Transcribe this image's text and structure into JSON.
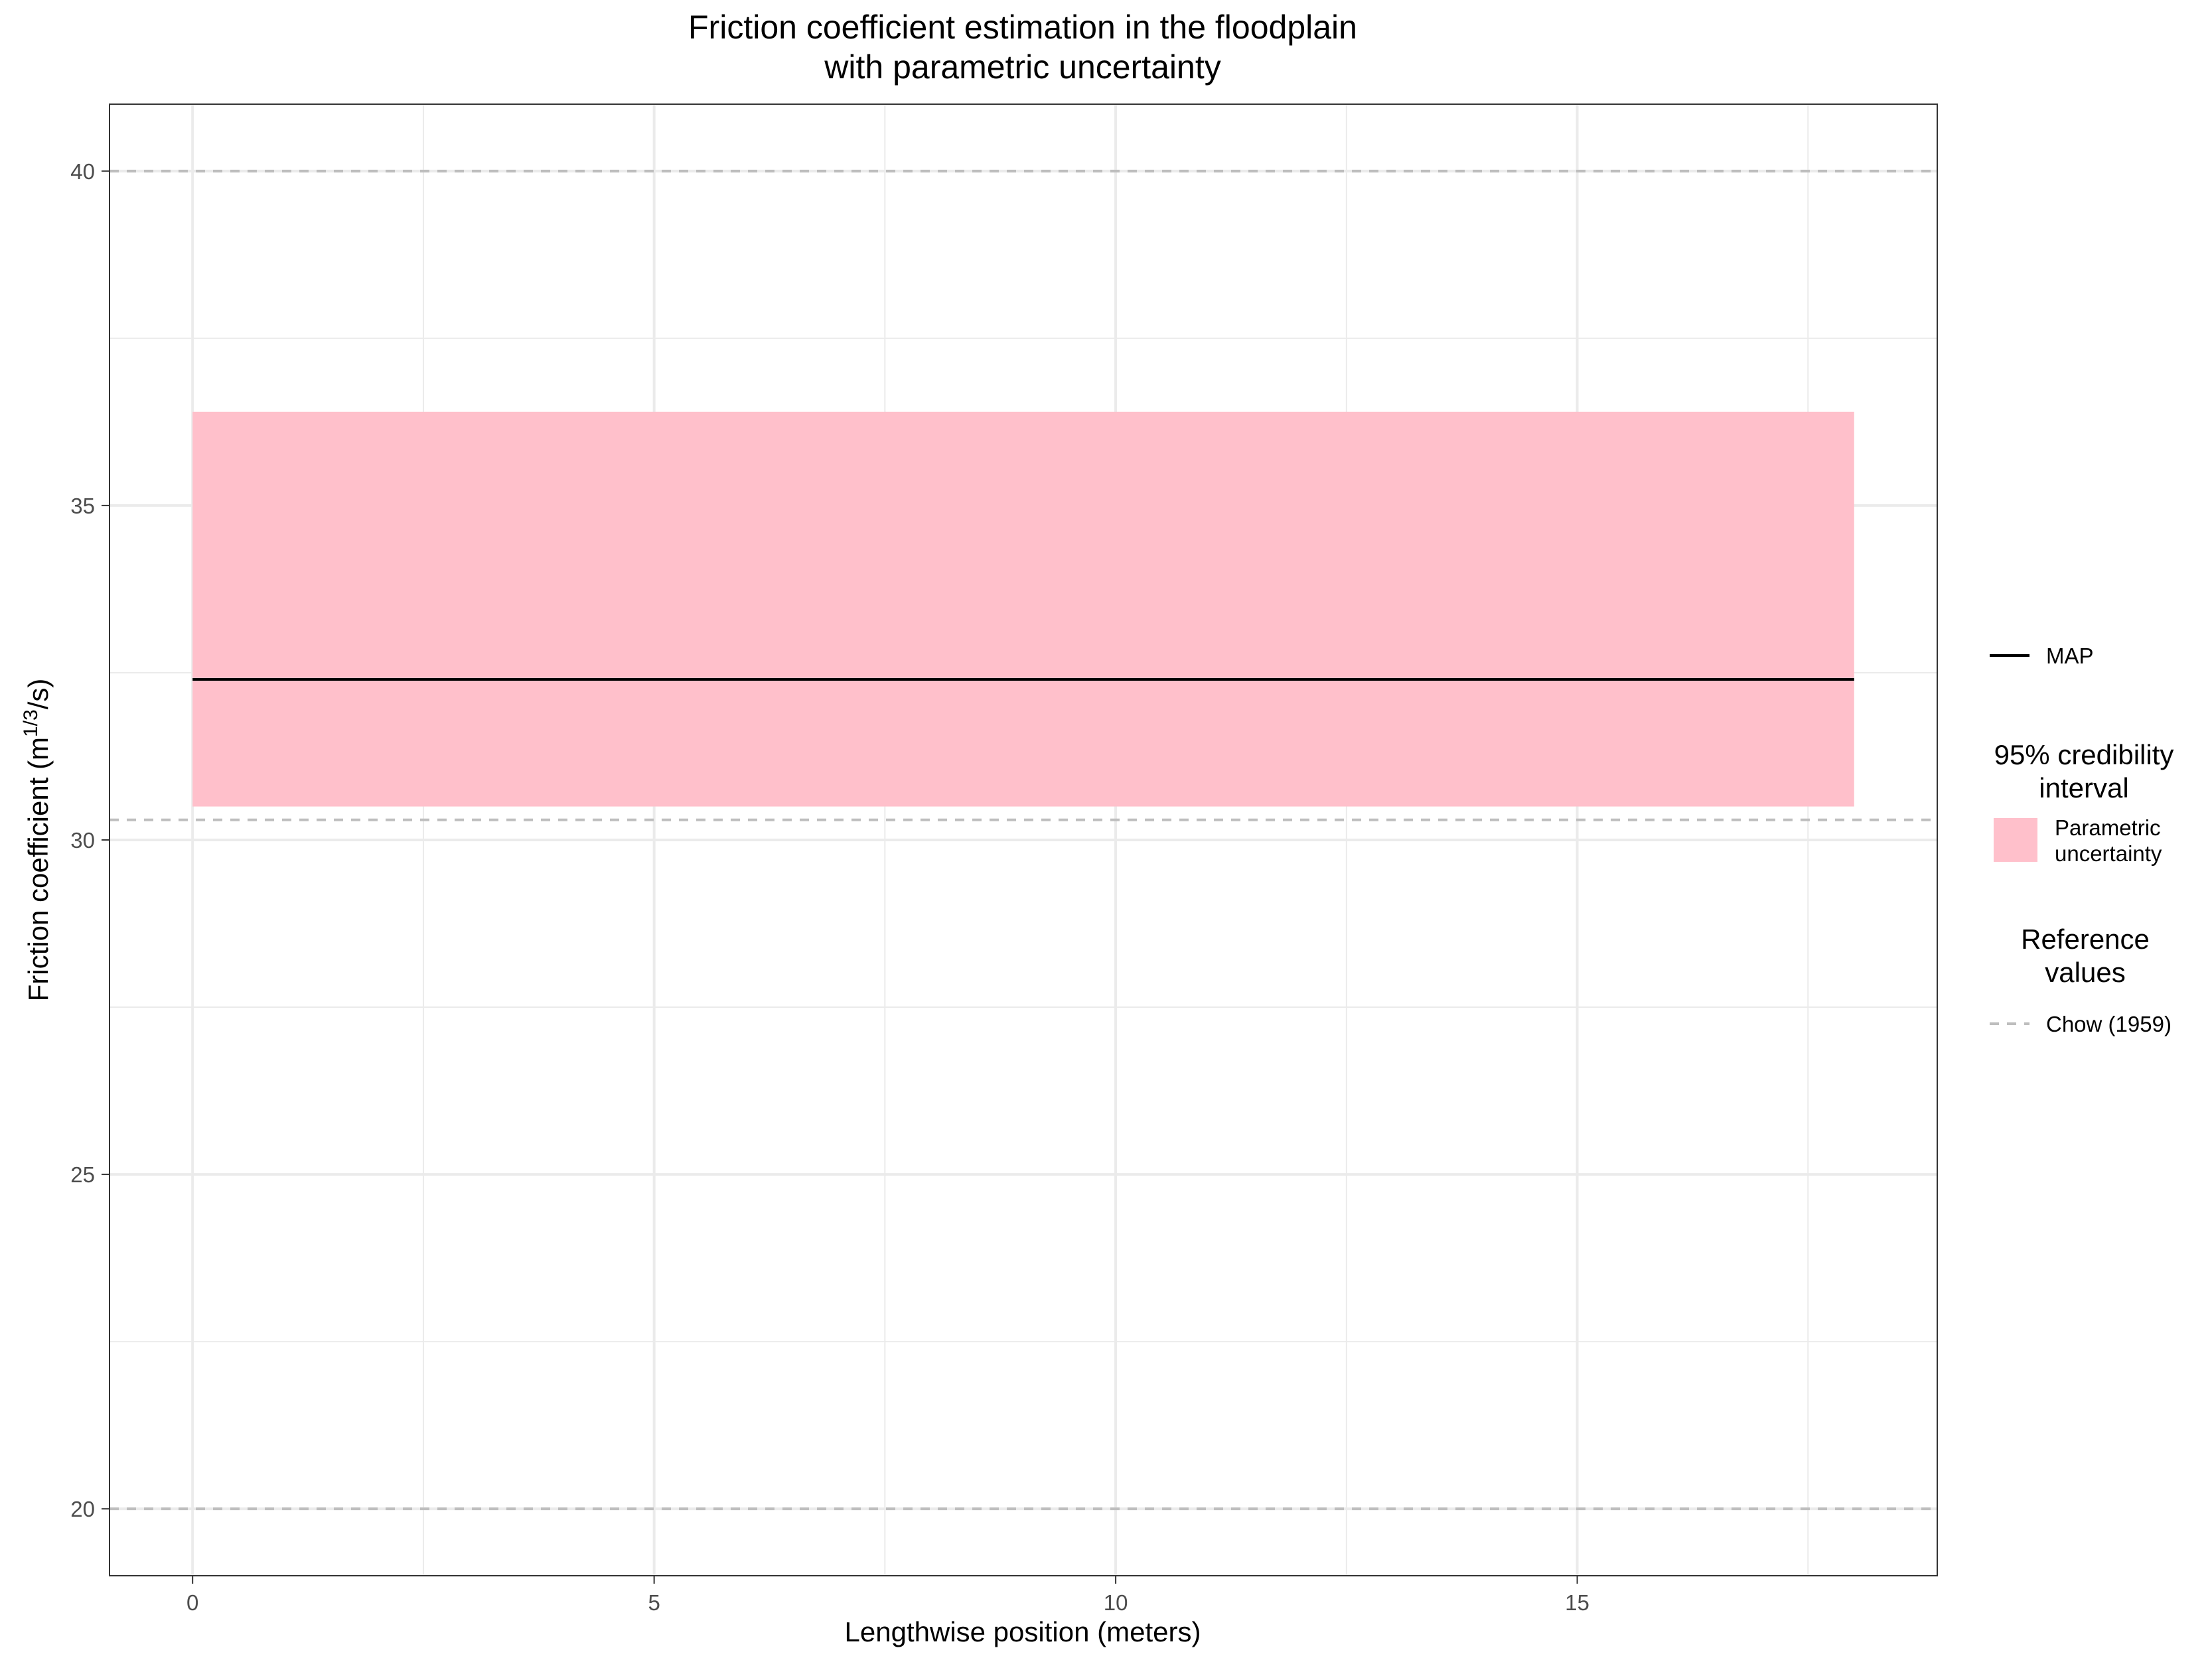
{
  "chart_data": {
    "type": "line",
    "title": [
      "Friction coefficient estimation in the floodplain",
      "with parametric uncertainty"
    ],
    "xlabel": "Lengthwise position (meters)",
    "ylabel": {
      "prefix": "Friction coefficient (m",
      "sup": "1/3",
      "suffix": "/s)"
    },
    "xlim": [
      -0.9,
      18.9
    ],
    "ylim": [
      19,
      41
    ],
    "x_ticks": [
      0,
      5,
      10,
      15
    ],
    "x_tick_labels": [
      "0",
      "5",
      "10",
      "15"
    ],
    "y_ticks": [
      20,
      25,
      30,
      35,
      40
    ],
    "y_tick_labels": [
      "20",
      "25",
      "30",
      "35",
      "40"
    ],
    "x_minor_ticks": [
      2.5,
      7.5,
      12.5,
      17.5
    ],
    "y_minor_ticks": [
      22.5,
      27.5,
      32.5,
      37.5
    ],
    "grid": true,
    "legend_position": "right",
    "series": [
      {
        "name": "MAP",
        "kind": "line",
        "color": "#000000",
        "x": [
          0,
          18
        ],
        "y": [
          32.4,
          32.4
        ]
      }
    ],
    "band": {
      "name": "Parametric uncertainty",
      "color": "#ffc0cb",
      "x": [
        0,
        18
      ],
      "lower": 30.5,
      "upper": 36.4
    },
    "reference_lines": {
      "name": "Chow (1959)",
      "color": "#bebebe",
      "values": [
        20,
        30.3,
        40
      ]
    },
    "legend": {
      "line_label": "MAP",
      "band_title": [
        "95% credibility",
        "interval"
      ],
      "band_label": [
        "Parametric",
        "uncertainty"
      ],
      "ref_title": [
        "Reference",
        "values"
      ],
      "ref_label": "Chow (1959)"
    }
  }
}
